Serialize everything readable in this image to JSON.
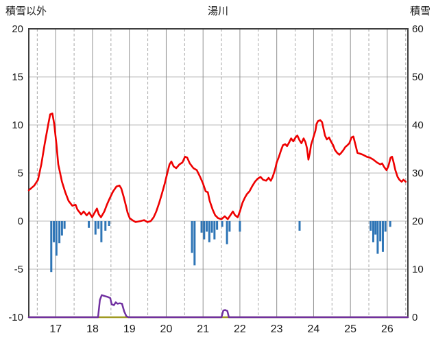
{
  "chart_data": {
    "type": "line+bar",
    "title": "湯川",
    "left_axis": {
      "label": "積雪以外",
      "min": -10,
      "max": 20,
      "ticks": [
        20,
        15,
        10,
        5,
        0,
        -5,
        -10
      ]
    },
    "right_axis": {
      "label": "積雪",
      "min": 0,
      "max": 60,
      "ticks": [
        60,
        50,
        40,
        30,
        20,
        10,
        0
      ]
    },
    "x_axis": {
      "min": 16.27,
      "max": 26.56,
      "ticks": [
        17,
        18,
        19,
        20,
        21,
        22,
        23,
        24,
        25,
        26
      ],
      "minor_grid": "dashed at half days"
    },
    "layout": {
      "grid": true,
      "legend": "none"
    },
    "colors": {
      "red_line": "#ee0000",
      "blue_bars": "#2e75b6",
      "purple_line": "#7030a0",
      "olive_baseline": "#a09a22",
      "grid_h": "#b8b8b8",
      "grid_v": "#8f8f8f",
      "grid_v_dash": "#a8a8a8",
      "border": "#3f3f3f",
      "text": "#1a1a1a"
    },
    "series": {
      "red_line": {
        "axis": "left",
        "points": [
          [
            16.27,
            3.2
          ],
          [
            16.42,
            3.7
          ],
          [
            16.52,
            4.3
          ],
          [
            16.61,
            5.9
          ],
          [
            16.7,
            8.0
          ],
          [
            16.8,
            10.1
          ],
          [
            16.85,
            11.1
          ],
          [
            16.91,
            11.2
          ],
          [
            16.96,
            10.1
          ],
          [
            17.02,
            8.0
          ],
          [
            17.07,
            5.9
          ],
          [
            17.17,
            4.1
          ],
          [
            17.26,
            3.0
          ],
          [
            17.35,
            2.1
          ],
          [
            17.45,
            1.6
          ],
          [
            17.54,
            1.7
          ],
          [
            17.59,
            1.2
          ],
          [
            17.69,
            0.7
          ],
          [
            17.76,
            1.0
          ],
          [
            17.84,
            0.6
          ],
          [
            17.91,
            0.9
          ],
          [
            17.99,
            0.4
          ],
          [
            18.06,
            0.9
          ],
          [
            18.12,
            1.3
          ],
          [
            18.17,
            0.7
          ],
          [
            18.23,
            0.4
          ],
          [
            18.32,
            1.0
          ],
          [
            18.39,
            1.7
          ],
          [
            18.47,
            2.4
          ],
          [
            18.56,
            3.1
          ],
          [
            18.65,
            3.6
          ],
          [
            18.73,
            3.7
          ],
          [
            18.78,
            3.4
          ],
          [
            18.84,
            2.6
          ],
          [
            18.9,
            1.7
          ],
          [
            18.95,
            0.9
          ],
          [
            19.01,
            0.3
          ],
          [
            19.08,
            0.1
          ],
          [
            19.17,
            -0.1
          ],
          [
            19.3,
            0.0
          ],
          [
            19.4,
            0.1
          ],
          [
            19.49,
            -0.1
          ],
          [
            19.58,
            0.0
          ],
          [
            19.66,
            0.4
          ],
          [
            19.73,
            1.0
          ],
          [
            19.81,
            1.9
          ],
          [
            19.88,
            2.8
          ],
          [
            19.96,
            3.9
          ],
          [
            20.03,
            5.0
          ],
          [
            20.09,
            5.9
          ],
          [
            20.14,
            6.2
          ],
          [
            20.2,
            5.7
          ],
          [
            20.27,
            5.5
          ],
          [
            20.36,
            5.9
          ],
          [
            20.44,
            6.1
          ],
          [
            20.51,
            6.7
          ],
          [
            20.57,
            6.6
          ],
          [
            20.64,
            6.0
          ],
          [
            20.74,
            5.5
          ],
          [
            20.83,
            5.3
          ],
          [
            20.92,
            4.6
          ],
          [
            21.0,
            3.9
          ],
          [
            21.07,
            3.1
          ],
          [
            21.13,
            3.0
          ],
          [
            21.18,
            2.1
          ],
          [
            21.26,
            1.2
          ],
          [
            21.33,
            0.6
          ],
          [
            21.41,
            0.3
          ],
          [
            21.5,
            0.2
          ],
          [
            21.59,
            0.5
          ],
          [
            21.67,
            0.2
          ],
          [
            21.74,
            0.6
          ],
          [
            21.81,
            1.0
          ],
          [
            21.87,
            0.6
          ],
          [
            21.94,
            0.4
          ],
          [
            22.0,
            1.0
          ],
          [
            22.07,
            1.9
          ],
          [
            22.13,
            2.4
          ],
          [
            22.19,
            2.8
          ],
          [
            22.26,
            3.1
          ],
          [
            22.33,
            3.6
          ],
          [
            22.41,
            4.1
          ],
          [
            22.48,
            4.4
          ],
          [
            22.56,
            4.6
          ],
          [
            22.63,
            4.3
          ],
          [
            22.71,
            4.2
          ],
          [
            22.78,
            4.5
          ],
          [
            22.84,
            4.2
          ],
          [
            22.89,
            4.6
          ],
          [
            22.95,
            5.3
          ],
          [
            23.0,
            6.1
          ],
          [
            23.06,
            6.7
          ],
          [
            23.12,
            7.4
          ],
          [
            23.17,
            7.9
          ],
          [
            23.23,
            8.0
          ],
          [
            23.28,
            7.8
          ],
          [
            23.34,
            8.2
          ],
          [
            23.39,
            8.6
          ],
          [
            23.45,
            8.3
          ],
          [
            23.51,
            8.7
          ],
          [
            23.56,
            8.9
          ],
          [
            23.62,
            8.4
          ],
          [
            23.67,
            8.1
          ],
          [
            23.73,
            8.6
          ],
          [
            23.78,
            8.2
          ],
          [
            23.82,
            7.6
          ],
          [
            23.86,
            6.4
          ],
          [
            23.9,
            7.1
          ],
          [
            23.93,
            7.9
          ],
          [
            23.97,
            8.4
          ],
          [
            24.01,
            8.9
          ],
          [
            24.05,
            9.4
          ],
          [
            24.08,
            10.1
          ],
          [
            24.12,
            10.4
          ],
          [
            24.18,
            10.5
          ],
          [
            24.23,
            10.3
          ],
          [
            24.27,
            9.6
          ],
          [
            24.31,
            8.9
          ],
          [
            24.36,
            8.5
          ],
          [
            24.42,
            8.7
          ],
          [
            24.47,
            8.3
          ],
          [
            24.53,
            7.9
          ],
          [
            24.58,
            7.4
          ],
          [
            24.64,
            7.1
          ],
          [
            24.7,
            6.9
          ],
          [
            24.75,
            7.1
          ],
          [
            24.81,
            7.4
          ],
          [
            24.86,
            7.7
          ],
          [
            24.92,
            7.9
          ],
          [
            24.97,
            8.1
          ],
          [
            25.03,
            8.7
          ],
          [
            25.08,
            8.8
          ],
          [
            25.14,
            7.9
          ],
          [
            25.19,
            7.1
          ],
          [
            25.27,
            7.0
          ],
          [
            25.34,
            6.9
          ],
          [
            25.44,
            6.7
          ],
          [
            25.53,
            6.6
          ],
          [
            25.62,
            6.4
          ],
          [
            25.72,
            6.1
          ],
          [
            25.81,
            5.9
          ],
          [
            25.86,
            6.0
          ],
          [
            25.92,
            5.6
          ],
          [
            25.98,
            5.3
          ],
          [
            26.03,
            5.7
          ],
          [
            26.09,
            6.6
          ],
          [
            26.13,
            6.7
          ],
          [
            26.16,
            6.3
          ],
          [
            26.22,
            5.3
          ],
          [
            26.28,
            4.6
          ],
          [
            26.33,
            4.3
          ],
          [
            26.39,
            4.1
          ],
          [
            26.44,
            4.3
          ],
          [
            26.5,
            4.1
          ]
        ]
      },
      "blue_bars": {
        "axis": "left",
        "points": [
          [
            16.88,
            -5.3
          ],
          [
            16.95,
            -2.2
          ],
          [
            17.02,
            -3.6
          ],
          [
            17.1,
            -2.3
          ],
          [
            17.17,
            -1.5
          ],
          [
            17.24,
            -0.8
          ],
          [
            17.9,
            -0.7
          ],
          [
            18.08,
            -1.4
          ],
          [
            18.16,
            -0.8
          ],
          [
            18.24,
            -2.2
          ],
          [
            18.35,
            -1.0
          ],
          [
            18.45,
            -0.5
          ],
          [
            20.7,
            -3.3
          ],
          [
            20.77,
            -4.6
          ],
          [
            20.96,
            -1.2
          ],
          [
            21.03,
            -1.9
          ],
          [
            21.1,
            -1.1
          ],
          [
            21.17,
            -2.2
          ],
          [
            21.24,
            -1.2
          ],
          [
            21.31,
            -1.9
          ],
          [
            21.38,
            -0.9
          ],
          [
            21.52,
            -0.6
          ],
          [
            21.65,
            -2.4
          ],
          [
            21.72,
            -1.1
          ],
          [
            22.0,
            -1.1
          ],
          [
            23.62,
            -1.0
          ],
          [
            25.55,
            -1.0
          ],
          [
            25.62,
            -2.2
          ],
          [
            25.68,
            -1.4
          ],
          [
            25.74,
            -3.4
          ],
          [
            25.81,
            -2.1
          ],
          [
            25.88,
            -3.2
          ],
          [
            25.95,
            -1.1
          ],
          [
            26.08,
            -0.6
          ]
        ]
      },
      "purple_line": {
        "axis": "right",
        "points": [
          [
            16.27,
            0
          ],
          [
            18.15,
            0
          ],
          [
            18.2,
            3.6
          ],
          [
            18.25,
            4.6
          ],
          [
            18.33,
            4.4
          ],
          [
            18.42,
            4.2
          ],
          [
            18.48,
            4.0
          ],
          [
            18.52,
            2.7
          ],
          [
            18.58,
            2.5
          ],
          [
            18.63,
            3.1
          ],
          [
            18.68,
            2.8
          ],
          [
            18.74,
            2.9
          ],
          [
            18.8,
            2.8
          ],
          [
            18.86,
            1.2
          ],
          [
            18.92,
            0.2
          ],
          [
            18.98,
            0
          ],
          [
            21.5,
            0
          ],
          [
            21.55,
            1.4
          ],
          [
            21.6,
            1.5
          ],
          [
            21.66,
            1.3
          ],
          [
            21.7,
            0
          ],
          [
            26.56,
            0
          ]
        ]
      },
      "olive_baseline": {
        "axis": "right",
        "points": [
          [
            16.27,
            0
          ],
          [
            26.56,
            0
          ]
        ]
      }
    }
  }
}
